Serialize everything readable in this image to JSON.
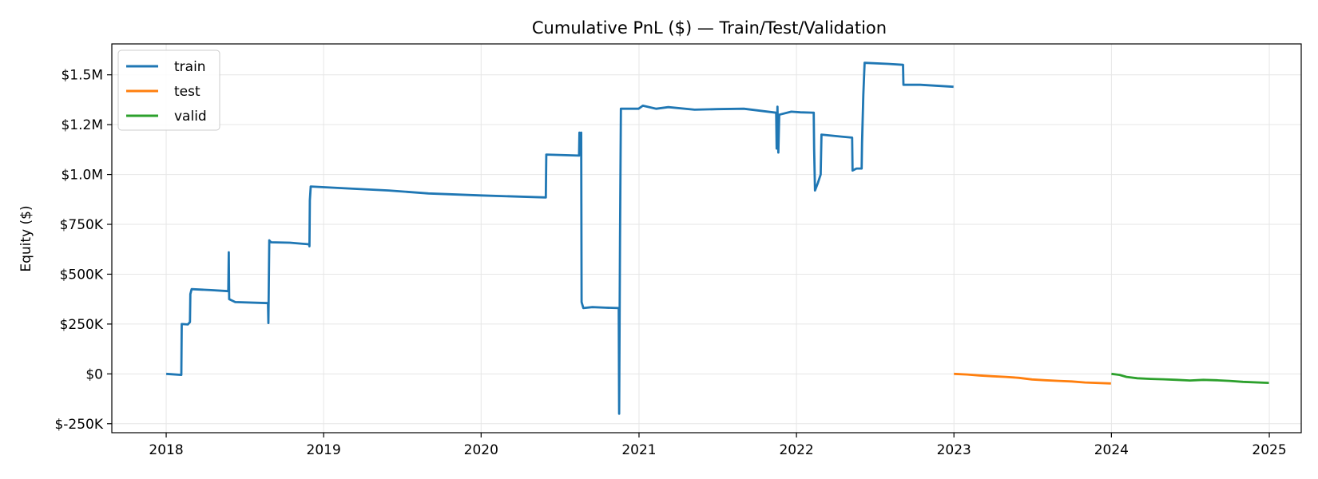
{
  "chart_data": {
    "type": "line",
    "title": "Cumulative PnL ($) — Train/Test/Validation",
    "xlabel": "",
    "ylabel": "Equity ($)",
    "x_ticks": [
      "2018",
      "2019",
      "2020",
      "2021",
      "2022",
      "2023",
      "2024",
      "2025"
    ],
    "y_ticks": [
      {
        "value": -250000,
        "label": "$-250K"
      },
      {
        "value": 0,
        "label": "$0"
      },
      {
        "value": 250000,
        "label": "$250K"
      },
      {
        "value": 500000,
        "label": "$500K"
      },
      {
        "value": 750000,
        "label": "$750K"
      },
      {
        "value": 1000000,
        "label": "$1.0M"
      },
      {
        "value": 1250000,
        "label": "$1.2M"
      },
      {
        "value": 1500000,
        "label": "$1.5M"
      }
    ],
    "xlim": [
      "2017-08-28",
      "2025-03-16"
    ],
    "ylim": [
      -295000,
      1655000
    ],
    "grid": true,
    "legend_position": "top-left",
    "series": [
      {
        "name": "train",
        "color": "#1f77b4",
        "points": [
          [
            "2018-01-01",
            0
          ],
          [
            "2018-01-15",
            -2000
          ],
          [
            "2018-02-05",
            -5000
          ],
          [
            "2018-02-06",
            250000
          ],
          [
            "2018-02-20",
            248000
          ],
          [
            "2018-02-25",
            260000
          ],
          [
            "2018-02-26",
            400000
          ],
          [
            "2018-03-01",
            425000
          ],
          [
            "2018-04-15",
            420000
          ],
          [
            "2018-05-25",
            415000
          ],
          [
            "2018-05-26",
            610000
          ],
          [
            "2018-05-27",
            375000
          ],
          [
            "2018-06-10",
            360000
          ],
          [
            "2018-08-25",
            355000
          ],
          [
            "2018-08-26",
            255000
          ],
          [
            "2018-08-27",
            480000
          ],
          [
            "2018-08-28",
            670000
          ],
          [
            "2018-09-01",
            660000
          ],
          [
            "2018-10-15",
            658000
          ],
          [
            "2018-11-28",
            650000
          ],
          [
            "2018-11-29",
            640000
          ],
          [
            "2018-11-30",
            870000
          ],
          [
            "2018-12-02",
            940000
          ],
          [
            "2019-03-01",
            930000
          ],
          [
            "2019-06-01",
            920000
          ],
          [
            "2019-09-01",
            905000
          ],
          [
            "2020-01-01",
            895000
          ],
          [
            "2020-05-30",
            885000
          ],
          [
            "2020-05-31",
            1100000
          ],
          [
            "2020-06-30",
            1098000
          ],
          [
            "2020-08-15",
            1095000
          ],
          [
            "2020-08-16",
            1210000
          ],
          [
            "2020-08-17",
            1100000
          ],
          [
            "2020-08-20",
            1210000
          ],
          [
            "2020-08-21",
            360000
          ],
          [
            "2020-08-25",
            330000
          ],
          [
            "2020-09-15",
            335000
          ],
          [
            "2020-10-15",
            332000
          ],
          [
            "2020-11-15",
            330000
          ],
          [
            "2020-11-16",
            -200000
          ],
          [
            "2020-11-18",
            680000
          ],
          [
            "2020-11-20",
            1330000
          ],
          [
            "2020-12-31",
            1330000
          ],
          [
            "2021-01-10",
            1345000
          ],
          [
            "2021-02-10",
            1330000
          ],
          [
            "2021-03-10",
            1338000
          ],
          [
            "2021-05-10",
            1325000
          ],
          [
            "2021-07-01",
            1328000
          ],
          [
            "2021-09-01",
            1330000
          ],
          [
            "2021-11-15",
            1310000
          ],
          [
            "2021-11-16",
            1130000
          ],
          [
            "2021-11-18",
            1340000
          ],
          [
            "2021-11-20",
            1110000
          ],
          [
            "2021-11-22",
            1300000
          ],
          [
            "2021-12-20",
            1315000
          ],
          [
            "2022-01-10",
            1312000
          ],
          [
            "2022-02-10",
            1310000
          ],
          [
            "2022-02-11",
            1130000
          ],
          [
            "2022-02-13",
            920000
          ],
          [
            "2022-02-20",
            960000
          ],
          [
            "2022-02-26",
            1000000
          ],
          [
            "2022-02-28",
            1200000
          ],
          [
            "2022-04-15",
            1190000
          ],
          [
            "2022-05-10",
            1185000
          ],
          [
            "2022-05-11",
            1020000
          ],
          [
            "2022-05-20",
            1030000
          ],
          [
            "2022-06-01",
            1030000
          ],
          [
            "2022-06-02",
            1160000
          ],
          [
            "2022-06-05",
            1400000
          ],
          [
            "2022-06-08",
            1560000
          ],
          [
            "2022-08-01",
            1555000
          ],
          [
            "2022-09-05",
            1550000
          ],
          [
            "2022-09-06",
            1450000
          ],
          [
            "2022-10-15",
            1450000
          ],
          [
            "2022-12-31",
            1440000
          ]
        ]
      },
      {
        "name": "test",
        "color": "#ff7f0e",
        "points": [
          [
            "2023-01-01",
            0
          ],
          [
            "2023-02-01",
            -3000
          ],
          [
            "2023-03-01",
            -8000
          ],
          [
            "2023-04-01",
            -12000
          ],
          [
            "2023-05-01",
            -15000
          ],
          [
            "2023-06-01",
            -20000
          ],
          [
            "2023-07-01",
            -28000
          ],
          [
            "2023-08-01",
            -32000
          ],
          [
            "2023-09-01",
            -35000
          ],
          [
            "2023-10-01",
            -38000
          ],
          [
            "2023-11-01",
            -43000
          ],
          [
            "2023-12-31",
            -48000
          ]
        ]
      },
      {
        "name": "valid",
        "color": "#2ca02c",
        "points": [
          [
            "2024-01-01",
            0
          ],
          [
            "2024-01-20",
            -5000
          ],
          [
            "2024-02-05",
            -15000
          ],
          [
            "2024-03-01",
            -22000
          ],
          [
            "2024-04-01",
            -25000
          ],
          [
            "2024-05-01",
            -27000
          ],
          [
            "2024-06-01",
            -30000
          ],
          [
            "2024-07-01",
            -33000
          ],
          [
            "2024-08-01",
            -30000
          ],
          [
            "2024-09-01",
            -32000
          ],
          [
            "2024-10-01",
            -35000
          ],
          [
            "2024-11-01",
            -40000
          ],
          [
            "2024-12-31",
            -45000
          ]
        ]
      }
    ]
  }
}
